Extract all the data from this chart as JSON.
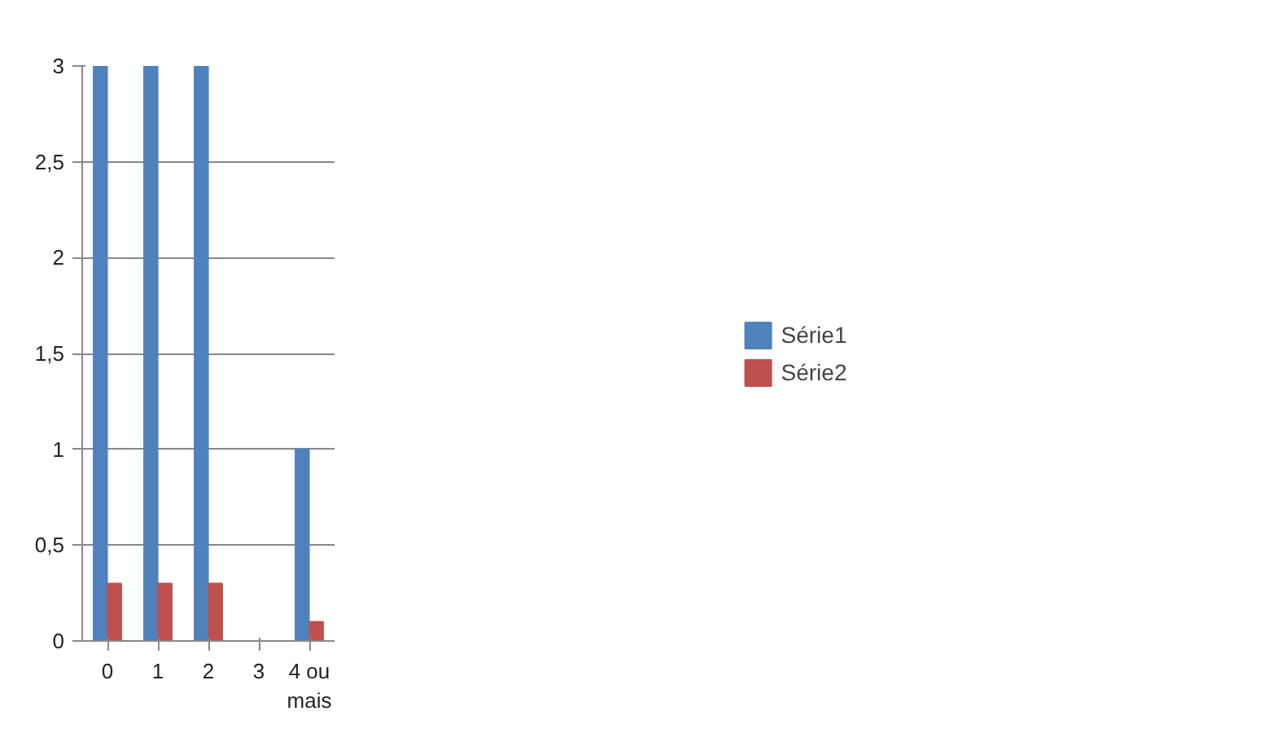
{
  "chart_data": {
    "type": "bar",
    "categories": [
      "0",
      "1",
      "2",
      "3",
      "4 ou mais"
    ],
    "series": [
      {
        "name": "Série1",
        "color": "#4f81bd",
        "values": [
          3,
          3,
          3,
          0,
          1
        ]
      },
      {
        "name": "Série2",
        "color": "#c0504d",
        "values": [
          0.3,
          0.3,
          0.3,
          0,
          0.1
        ]
      }
    ],
    "ylim": [
      0,
      3
    ],
    "yticks": [
      0,
      {
        "value": 0.5,
        "label": "0,5"
      },
      1,
      {
        "value": 1.5,
        "label": "1,5"
      },
      2,
      {
        "value": 2.5,
        "label": "2,5"
      },
      3
    ],
    "grid": "y",
    "legend": "right"
  }
}
